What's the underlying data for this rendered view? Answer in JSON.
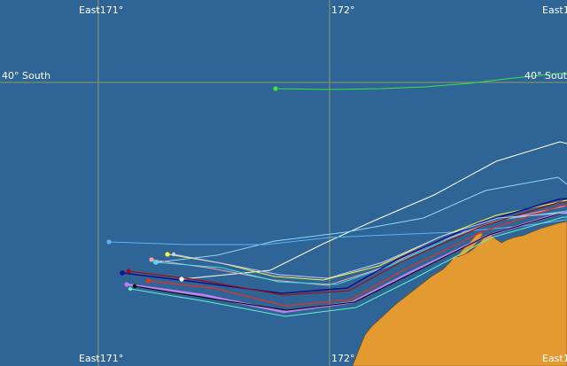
{
  "map": {
    "water_color": "#2f6496",
    "land_color": "#e39a30",
    "grid_color": "#8f9a62",
    "labels": {
      "lon_171": "East171°",
      "lon_172": "172°",
      "lon_173_cut": "East1",
      "lat_40": "40° South"
    },
    "tracks": [
      {
        "name": "green",
        "color": "#39e639"
      },
      {
        "name": "white",
        "color": "#ffffff"
      },
      {
        "name": "sky-blue",
        "color": "#5ab4f0"
      },
      {
        "name": "light-blue",
        "color": "#8fd8f8"
      },
      {
        "name": "yellow",
        "color": "#f8f840"
      },
      {
        "name": "pink",
        "color": "#f8a0b0"
      },
      {
        "name": "cyan",
        "color": "#40e0e0"
      },
      {
        "name": "navy",
        "color": "#10108a"
      },
      {
        "name": "dark-red",
        "color": "#a01010"
      },
      {
        "name": "red",
        "color": "#e83020"
      },
      {
        "name": "violet",
        "color": "#c080f0"
      },
      {
        "name": "black",
        "color": "#000000"
      },
      {
        "name": "aqua",
        "color": "#60f0c8"
      },
      {
        "name": "lavender",
        "color": "#c8c8ff"
      }
    ]
  }
}
